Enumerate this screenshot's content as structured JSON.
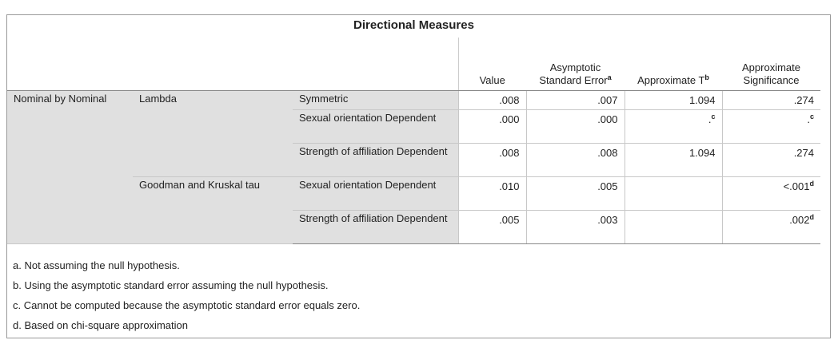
{
  "title": "Directional Measures",
  "header": [
    {
      "text": "Value"
    },
    {
      "text": "Asymptotic Standard Error",
      "sup": "a"
    },
    {
      "text": "Approximate T",
      "sup": "b"
    },
    {
      "text": "Approximate Significance"
    }
  ],
  "groups": [
    {
      "label": "Nominal by Nominal",
      "measures": [
        {
          "label": "Lambda",
          "rows": [
            {
              "label": "Symmetric",
              "cells": [
                {
                  "text": ".008"
                },
                {
                  "text": ".007"
                },
                {
                  "text": "1.094"
                },
                {
                  "text": ".274"
                }
              ]
            },
            {
              "label": "Sexual orientation Dependent",
              "cells": [
                {
                  "text": ".000"
                },
                {
                  "text": ".000"
                },
                {
                  "text": ".",
                  "sup": "c"
                },
                {
                  "text": ".",
                  "sup": "c"
                }
              ]
            },
            {
              "label": "Strength of affiliation Dependent",
              "cells": [
                {
                  "text": ".008"
                },
                {
                  "text": ".008"
                },
                {
                  "text": "1.094"
                },
                {
                  "text": ".274"
                }
              ]
            }
          ]
        },
        {
          "label": "Goodman and Kruskal tau",
          "rows": [
            {
              "label": "Sexual orientation Dependent",
              "cells": [
                {
                  "text": ".010"
                },
                {
                  "text": ".005"
                },
                null,
                {
                  "text": "<.001",
                  "sup": "d"
                }
              ]
            },
            {
              "label": "Strength of affiliation Dependent",
              "cells": [
                {
                  "text": ".005"
                },
                {
                  "text": ".003"
                },
                null,
                {
                  "text": ".002",
                  "sup": "d"
                }
              ]
            }
          ]
        }
      ]
    }
  ],
  "footnotes": [
    "a. Not assuming the null hypothesis.",
    "b. Using the asymptotic standard error assuming the null hypothesis.",
    "c. Cannot be computed because the asymptotic standard error equals zero.",
    "d. Based on chi-square approximation"
  ]
}
